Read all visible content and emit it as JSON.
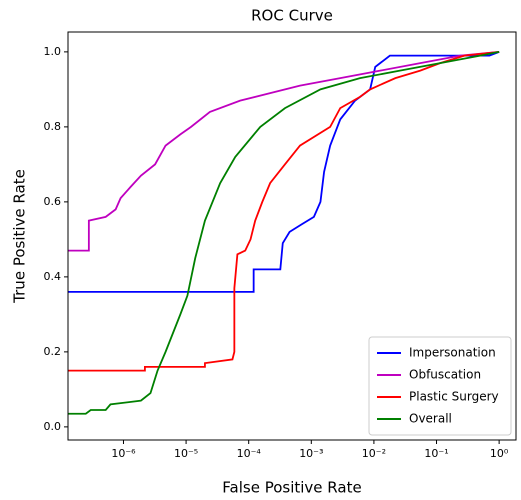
{
  "chart_data": {
    "type": "line",
    "title": "ROC Curve",
    "x_label": "False Positive Rate",
    "y_label": "True Positive Rate",
    "x_scale": "log",
    "legend": "lower right",
    "xlim": [
      1.3e-07,
      1.86
    ],
    "ylim": [
      -0.035,
      1.053
    ],
    "xticks": [
      {
        "value": 1e-06,
        "label": "10⁻⁶"
      },
      {
        "value": 1e-05,
        "label": "10⁻⁵"
      },
      {
        "value": 0.0001,
        "label": "10⁻⁴"
      },
      {
        "value": 0.001,
        "label": "10⁻³"
      },
      {
        "value": 0.01,
        "label": "10⁻²"
      },
      {
        "value": 0.1,
        "label": "10⁻¹"
      },
      {
        "value": 1,
        "label": "10⁰"
      }
    ],
    "yticks": [
      {
        "value": 0,
        "label": "0.0"
      },
      {
        "value": 0.2,
        "label": "0.2"
      },
      {
        "value": 0.4,
        "label": "0.4"
      },
      {
        "value": 0.6,
        "label": "0.6"
      },
      {
        "value": 0.8,
        "label": "0.8"
      },
      {
        "value": 1,
        "label": "1.0"
      }
    ],
    "series": [
      {
        "name": "Impersonation",
        "color": "#0000ff",
        "x": [
          1.3e-07,
          0.00012,
          0.00012,
          0.00032,
          0.00035,
          0.00045,
          0.0007,
          0.0011,
          0.0014,
          0.0016,
          0.002,
          0.0029,
          0.005,
          0.0087,
          0.0105,
          0.018,
          0.7,
          1
        ],
        "values": [
          0.36,
          0.36,
          0.42,
          0.42,
          0.49,
          0.52,
          0.54,
          0.56,
          0.6,
          0.68,
          0.75,
          0.82,
          0.87,
          0.9,
          0.96,
          0.99,
          0.99,
          1.0
        ]
      },
      {
        "name": "Obfuscation",
        "color": "#bf00bf",
        "x": [
          1.3e-07,
          2.8e-07,
          2.8e-07,
          5.2e-07,
          7.5e-07,
          9e-07,
          1.3e-06,
          1.9e-06,
          3.2e-06,
          4.7e-06,
          8.1e-06,
          1.2e-05,
          2.4e-05,
          7.3e-05,
          0.00022,
          0.00066,
          0.0029,
          0.0126,
          0.055,
          0.24,
          1
        ],
        "values": [
          0.47,
          0.47,
          0.55,
          0.56,
          0.58,
          0.61,
          0.64,
          0.67,
          0.7,
          0.75,
          0.78,
          0.8,
          0.84,
          0.87,
          0.89,
          0.91,
          0.93,
          0.95,
          0.97,
          0.99,
          1.0
        ]
      },
      {
        "name": "Plastic Surgery",
        "color": "#ff0000",
        "x": [
          1.3e-07,
          2.2e-06,
          2.2e-06,
          2e-05,
          2e-05,
          5.5e-05,
          5.9e-05,
          5.9e-05,
          6.6e-05,
          8.8e-05,
          0.000107,
          0.000127,
          0.000165,
          0.00022,
          0.00038,
          0.00066,
          0.002,
          0.0029,
          0.006,
          0.0087,
          0.022,
          0.055,
          0.114,
          0.28,
          1
        ],
        "values": [
          0.15,
          0.15,
          0.16,
          0.16,
          0.17,
          0.18,
          0.2,
          0.37,
          0.46,
          0.47,
          0.5,
          0.55,
          0.6,
          0.65,
          0.7,
          0.75,
          0.8,
          0.85,
          0.88,
          0.9,
          0.93,
          0.95,
          0.97,
          0.99,
          1.0
        ]
      },
      {
        "name": "Overall",
        "color": "#008000",
        "x": [
          1.3e-07,
          2.5e-07,
          3e-07,
          5.2e-07,
          6.2e-07,
          1.9e-06,
          2.7e-06,
          3.5e-06,
          4.7e-06,
          8.1e-06,
          1.05e-05,
          1.4e-05,
          2e-05,
          3.5e-05,
          6.1e-05,
          0.000153,
          0.00038,
          0.0014,
          0.006,
          0.026,
          0.114,
          0.5,
          1
        ],
        "values": [
          0.035,
          0.035,
          0.045,
          0.045,
          0.06,
          0.07,
          0.09,
          0.15,
          0.2,
          0.3,
          0.35,
          0.45,
          0.55,
          0.65,
          0.72,
          0.8,
          0.85,
          0.9,
          0.93,
          0.95,
          0.97,
          0.99,
          1.0
        ]
      }
    ]
  }
}
